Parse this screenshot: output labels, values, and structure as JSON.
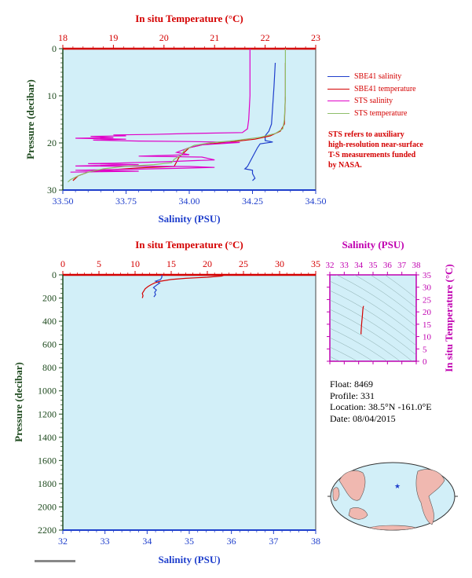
{
  "chart_data": [
    {
      "name": "upper",
      "type": "line",
      "top_axis": {
        "label": "In situ Temperature (°C)",
        "ticks": [
          "18",
          "19",
          "20",
          "21",
          "22",
          "23"
        ],
        "range": [
          18,
          23
        ]
      },
      "bottom_axis": {
        "label": "Salinity (PSU)",
        "ticks": [
          "33.50",
          "33.75",
          "34.00",
          "34.25",
          "34.50"
        ],
        "range": [
          33.5,
          34.5
        ]
      },
      "y_axis": {
        "label": "Pressure (decibar)",
        "ticks": [
          "0",
          "10",
          "20",
          "30"
        ],
        "range": [
          0,
          30
        ],
        "inverted": true
      },
      "series": [
        {
          "name": "SBE41 salinity",
          "color": "#1f3fcc",
          "axis": "salinity",
          "points": [
            [
              34.34,
              3
            ],
            [
              34.335,
              8
            ],
            [
              34.33,
              12
            ],
            [
              34.325,
              16
            ],
            [
              34.315,
              17.5
            ],
            [
              34.3,
              18.5
            ],
            [
              34.3,
              19.5
            ],
            [
              34.33,
              19.8
            ],
            [
              34.28,
              20.2
            ],
            [
              34.27,
              21
            ],
            [
              34.26,
              22
            ],
            [
              34.25,
              23
            ],
            [
              34.24,
              24
            ],
            [
              34.23,
              25
            ],
            [
              34.22,
              25.5
            ],
            [
              34.25,
              25.8
            ],
            [
              34.25,
              26.5
            ],
            [
              34.26,
              27.5
            ],
            [
              34.25,
              28
            ]
          ]
        },
        {
          "name": "SBE41 temperature",
          "color": "#d40000",
          "axis": "temperature",
          "points": [
            [
              22.4,
              3
            ],
            [
              22.4,
              10
            ],
            [
              22.38,
              16
            ],
            [
              22.3,
              17.5
            ],
            [
              22.1,
              18.5
            ],
            [
              21.8,
              19.2
            ],
            [
              21.3,
              19.8
            ],
            [
              20.8,
              20.3
            ],
            [
              20.5,
              21
            ],
            [
              20.4,
              22
            ],
            [
              20.3,
              23
            ],
            [
              20.25,
              24
            ],
            [
              20.2,
              25
            ],
            [
              19.5,
              25.3
            ],
            [
              18.8,
              25.8
            ],
            [
              18.5,
              26.2
            ],
            [
              18.3,
              27
            ],
            [
              18.2,
              28
            ]
          ]
        },
        {
          "name": "STS salinity",
          "color": "#e000c8",
          "axis": "salinity",
          "points": [
            [
              34.24,
              0
            ],
            [
              34.24,
              5
            ],
            [
              34.24,
              10
            ],
            [
              34.235,
              15
            ],
            [
              34.23,
              17
            ],
            [
              34.21,
              17.8
            ],
            [
              34.0,
              18
            ],
            [
              33.85,
              18.2
            ],
            [
              33.7,
              18.3
            ],
            [
              33.75,
              18.5
            ],
            [
              33.61,
              18.6
            ],
            [
              33.7,
              18.9
            ],
            [
              33.55,
              19.0
            ],
            [
              33.75,
              19.2
            ],
            [
              33.62,
              19.4
            ],
            [
              33.8,
              19.6
            ],
            [
              34.0,
              19.7
            ],
            [
              34.1,
              19.8
            ],
            [
              34.2,
              19.9
            ],
            [
              34.05,
              20.4
            ],
            [
              34.0,
              21
            ],
            [
              33.95,
              22
            ],
            [
              34.0,
              22.5
            ],
            [
              33.8,
              22.8
            ],
            [
              34.05,
              23
            ],
            [
              34.1,
              23.6
            ],
            [
              33.9,
              24
            ],
            [
              33.7,
              24.3
            ],
            [
              33.6,
              24.4
            ],
            [
              33.8,
              24.6
            ],
            [
              33.55,
              24.9
            ],
            [
              34.0,
              25.0
            ],
            [
              34.1,
              25.2
            ],
            [
              33.95,
              25.4
            ],
            [
              33.75,
              25.6
            ],
            [
              33.55,
              25.8
            ],
            [
              33.8,
              26.0
            ],
            [
              33.65,
              26.1
            ],
            [
              33.53,
              26.2
            ]
          ]
        },
        {
          "name": "STS temperature",
          "color": "#8fbf6a",
          "axis": "temperature",
          "points": [
            [
              22.4,
              0
            ],
            [
              22.4,
              5
            ],
            [
              22.4,
              10
            ],
            [
              22.38,
              15
            ],
            [
              22.35,
              17
            ],
            [
              22.2,
              18
            ],
            [
              21.9,
              18.8
            ],
            [
              21.4,
              19.5
            ],
            [
              20.9,
              20
            ],
            [
              20.6,
              20.5
            ],
            [
              20.4,
              21.5
            ],
            [
              20.35,
              22.5
            ],
            [
              20.2,
              23.5
            ],
            [
              20.15,
              24.2
            ],
            [
              19.8,
              24.6
            ],
            [
              19.2,
              25
            ],
            [
              18.8,
              25.5
            ],
            [
              18.5,
              26.2
            ],
            [
              18.3,
              27
            ],
            [
              18.15,
              27.8
            ],
            [
              18.1,
              28.3
            ]
          ]
        }
      ],
      "legend": {
        "placement": "right"
      }
    },
    {
      "name": "lower",
      "type": "line",
      "top_axis": {
        "label": "In situ Temperature (°C)",
        "ticks": [
          "0",
          "5",
          "10",
          "15",
          "20",
          "25",
          "30",
          "35"
        ],
        "range": [
          0,
          35
        ]
      },
      "bottom_axis": {
        "label": "Salinity (PSU)",
        "ticks": [
          "32",
          "33",
          "34",
          "35",
          "36",
          "37",
          "38"
        ],
        "range": [
          32,
          38
        ]
      },
      "y_axis": {
        "label": "Pressure (decibar)",
        "ticks": [
          "0",
          "200",
          "400",
          "600",
          "800",
          "1000",
          "1200",
          "1400",
          "1600",
          "1800",
          "2000",
          "2200"
        ],
        "range": [
          0,
          2200
        ],
        "inverted": true
      },
      "series": [
        {
          "name": "Salinity",
          "color": "#1f3fcc",
          "axis": "salinity",
          "points": [
            [
              34.35,
              0
            ],
            [
              34.35,
              20
            ],
            [
              34.32,
              40
            ],
            [
              34.2,
              55
            ],
            [
              34.3,
              70
            ],
            [
              34.22,
              90
            ],
            [
              34.15,
              110
            ],
            [
              34.22,
              130
            ],
            [
              34.18,
              150
            ],
            [
              34.2,
              170
            ],
            [
              34.16,
              190
            ]
          ]
        },
        {
          "name": "Temperature",
          "color": "#d40000",
          "axis": "temperature",
          "points": [
            [
              22.4,
              0
            ],
            [
              22.0,
              10
            ],
            [
              20.0,
              20
            ],
            [
              17.0,
              30
            ],
            [
              15.0,
              40
            ],
            [
              13.5,
              55
            ],
            [
              12.7,
              70
            ],
            [
              12.2,
              85
            ],
            [
              11.8,
              100
            ],
            [
              11.4,
              120
            ],
            [
              11.2,
              140
            ],
            [
              11.0,
              160
            ],
            [
              11.1,
              180
            ],
            [
              11.0,
              200
            ]
          ]
        }
      ]
    },
    {
      "name": "ts-diagram",
      "type": "scatter",
      "top_axis": {
        "label": "Salinity (PSU)",
        "ticks": [
          "32",
          "33",
          "34",
          "35",
          "36",
          "37",
          "38"
        ],
        "range": [
          32,
          38
        ]
      },
      "right_axis": {
        "label": "In situ Temperature (°C)",
        "ticks": [
          "0",
          "5",
          "10",
          "15",
          "20",
          "25",
          "30",
          "35"
        ],
        "range": [
          0,
          35
        ]
      },
      "series": [
        {
          "name": "T-S",
          "color": "#d40000",
          "points": [
            [
              34.34,
              22.4
            ],
            [
              34.3,
              21.5
            ],
            [
              34.28,
              20.0
            ],
            [
              34.25,
              18.0
            ],
            [
              34.22,
              16.0
            ],
            [
              34.2,
              14.5
            ],
            [
              34.18,
              13.0
            ],
            [
              34.17,
              12.0
            ],
            [
              34.16,
              11.2
            ],
            [
              34.2,
              11.0
            ]
          ]
        }
      ]
    }
  ],
  "legend_items": [
    {
      "label": "SBE41 salinity",
      "color": "#1f3fcc"
    },
    {
      "label": "SBE41 temperature",
      "color": "#d40000"
    },
    {
      "label": "STS salinity",
      "color": "#e000c8"
    },
    {
      "label": "STS temperature",
      "color": "#8fbf6a"
    }
  ],
  "note_lines": [
    "STS refers to auxiliary",
    "high-resolution near-surface",
    "T-S measurements funded",
    "by NASA."
  ],
  "info": {
    "float": "Float:  8469",
    "profile": "Profile:  331",
    "location": "Location:  38.5°N  -161.0°E",
    "date": "Date:  08/04/2015"
  },
  "map": {
    "marker_color": "#1f3fcc"
  },
  "colors": {
    "plot_bg": "#d2eff8",
    "temperature_axis": "#d40000",
    "salinity_axis": "#1f3fcc",
    "ts_axis": "#c000b0",
    "pressure_axis": "#1e4a1e"
  }
}
